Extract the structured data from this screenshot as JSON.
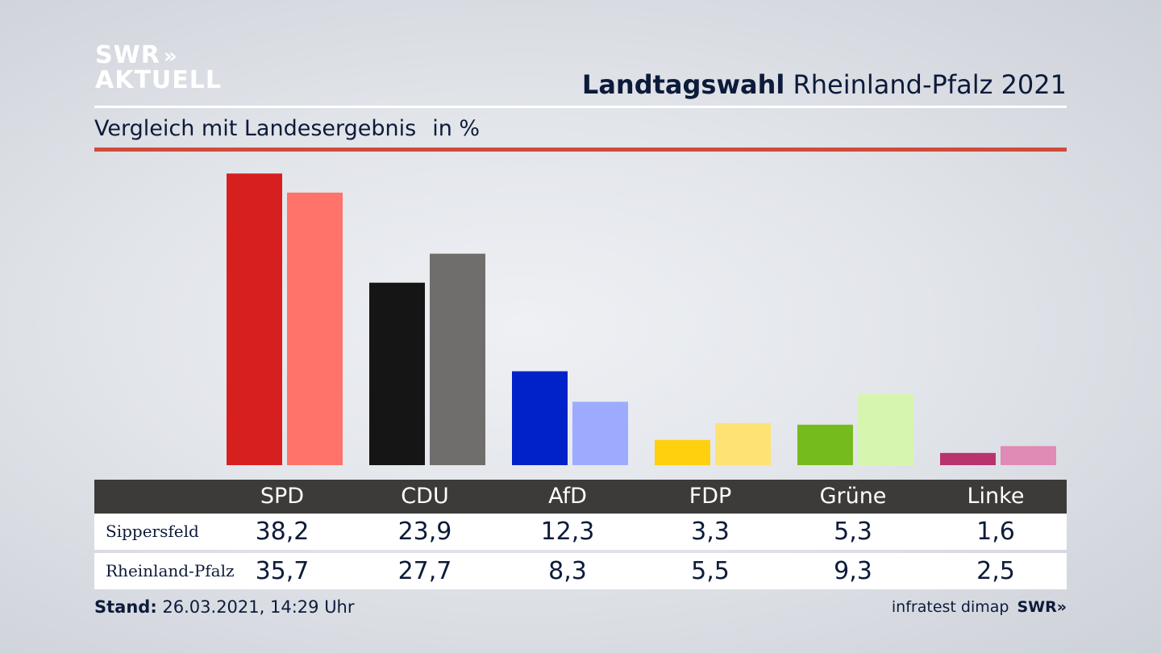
{
  "brand": {
    "logo_line1": "SWR",
    "logo_chevrons": "»",
    "logo_line2": "AKTUELL"
  },
  "header": {
    "title_bold": "Landtagswahl",
    "title_rest": "Rheinland-Pfalz 2021"
  },
  "subtitle": {
    "text": "Vergleich mit Landesergebnis",
    "unit": "in %"
  },
  "colors": {
    "accent_rule": "#cf4c3a",
    "table_header": "#3d3b39"
  },
  "chart_data": {
    "type": "bar",
    "categories": [
      "SPD",
      "CDU",
      "AfD",
      "FDP",
      "Grüne",
      "Linke"
    ],
    "ylim": [
      0,
      40
    ],
    "series": [
      {
        "name": "Sippersfeld",
        "values": [
          38.2,
          23.9,
          12.3,
          3.3,
          5.3,
          1.6
        ],
        "colors": [
          "#d71f1f",
          "#151515",
          "#0022c8",
          "#ffd00e",
          "#76bb1e",
          "#b9336f"
        ]
      },
      {
        "name": "Rheinland-Pfalz",
        "values": [
          35.7,
          27.7,
          8.3,
          5.5,
          9.3,
          2.5
        ],
        "colors": [
          "#ff736b",
          "#706e6c",
          "#9dabff",
          "#fee274",
          "#d6f6b0",
          "#e08ab6"
        ]
      }
    ]
  },
  "table": {
    "headers": [
      "SPD",
      "CDU",
      "AfD",
      "FDP",
      "Grüne",
      "Linke"
    ],
    "rows": [
      {
        "label": "Sippersfeld",
        "values": [
          "38,2",
          "23,9",
          "12,3",
          "3,3",
          "5,3",
          "1,6"
        ]
      },
      {
        "label": "Rheinland-Pfalz",
        "values": [
          "35,7",
          "27,7",
          "8,3",
          "5,5",
          "9,3",
          "2,5"
        ]
      }
    ]
  },
  "footer": {
    "stand_label": "Stand:",
    "stand_value": "26.03.2021, 14:29 Uhr",
    "source": "infratest dimap",
    "source_brand": "SWR»"
  }
}
